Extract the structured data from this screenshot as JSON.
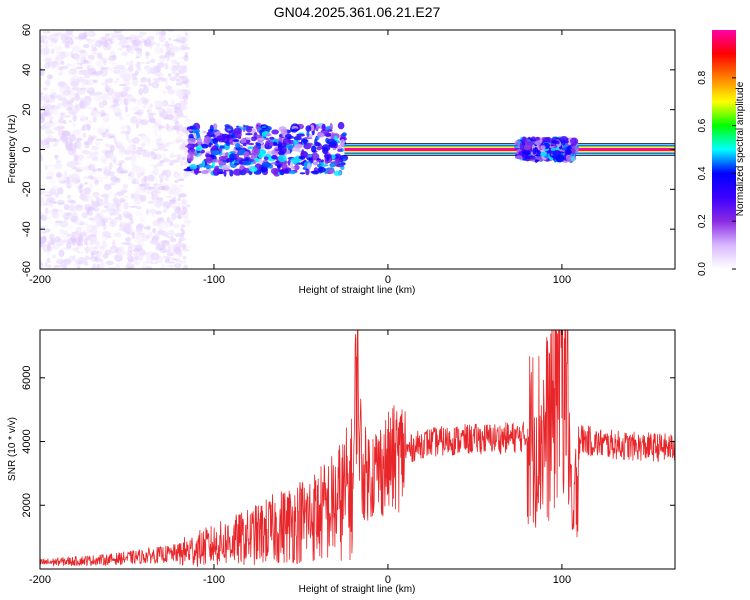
{
  "title": "GN04.2025.361.06.21.E27",
  "chart_data": [
    {
      "type": "heatmap",
      "name": "spectrogram",
      "xlabel": "Height of straight line (km)",
      "ylabel": "Frequency (Hz)",
      "xlim": [
        -200,
        165
      ],
      "ylim": [
        -60,
        60
      ],
      "x_ticks": [
        "-200",
        "-100",
        "0",
        "100"
      ],
      "y_ticks": [
        "60",
        "40",
        "20",
        "0",
        "-20",
        "-40",
        "-60"
      ],
      "features": [
        {
          "name": "broadband noise",
          "x_range": [
            -200,
            -115
          ],
          "freq_range": [
            -60,
            60
          ],
          "amplitude": 0.05
        },
        {
          "name": "narrowing band",
          "x_range": [
            -115,
            -25
          ],
          "freq_range": [
            -12,
            12
          ],
          "amplitude": 0.3
        },
        {
          "name": "carrier line",
          "x_range": [
            -25,
            165
          ],
          "freq_center": 0,
          "amplitude": 1.0
        },
        {
          "name": "scintillation burst",
          "x_range": [
            75,
            108
          ],
          "freq_range": [
            -5,
            5
          ],
          "amplitude": 0.3
        }
      ],
      "colorbar": {
        "label": "Normalized spectral amplitude",
        "range": [
          0,
          1
        ],
        "ticks": [
          "0.0",
          "0.2",
          "0.4",
          "0.6",
          "0.8"
        ],
        "colors": [
          "#ffffff",
          "#d8b8ff",
          "#8a2be2",
          "#3b00ff",
          "#0000ff",
          "#00ffff",
          "#00ff00",
          "#ffff00",
          "#ff8000",
          "#ff0000",
          "#ff00aa"
        ]
      }
    },
    {
      "type": "line",
      "name": "snr",
      "xlabel": "Height of straight line (km)",
      "ylabel": "SNR (10 * v/v)",
      "xlim": [
        -200,
        165
      ],
      "ylim": [
        0,
        7500
      ],
      "x_ticks": [
        "-200",
        "-100",
        "0",
        "100"
      ],
      "y_ticks": [
        "6000",
        "4000",
        "2000"
      ],
      "color": "#e8262a",
      "series": [
        {
          "name": "SNR",
          "x": [
            -200,
            -180,
            -160,
            -140,
            -120,
            -100,
            -80,
            -60,
            -40,
            -30,
            -20,
            -18,
            -15,
            -10,
            0,
            10,
            20,
            40,
            60,
            80,
            90,
            95,
            100,
            103,
            106,
            110,
            120,
            140,
            165
          ],
          "values": [
            200,
            250,
            300,
            400,
            500,
            750,
            1000,
            1350,
            1700,
            2000,
            2600,
            6800,
            3000,
            3000,
            3300,
            3700,
            3950,
            4050,
            4100,
            4150,
            4200,
            5000,
            7500,
            6200,
            1000,
            4100,
            3950,
            3850,
            3800
          ]
        }
      ]
    }
  ]
}
